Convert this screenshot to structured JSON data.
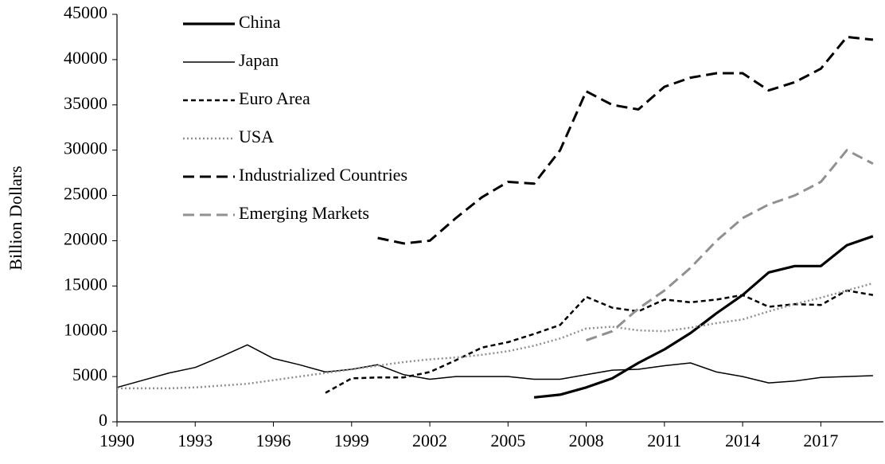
{
  "chart_data": {
    "type": "line",
    "y_label": "Billion Dollars",
    "x": [
      1990,
      1991,
      1992,
      1993,
      1994,
      1995,
      1996,
      1997,
      1998,
      1999,
      2000,
      2001,
      2002,
      2003,
      2004,
      2005,
      2006,
      2007,
      2008,
      2009,
      2010,
      2011,
      2012,
      2013,
      2014,
      2015,
      2016,
      2017,
      2018,
      2019
    ],
    "xlim": [
      1990,
      2019.4
    ],
    "xticks": [
      1990,
      1993,
      1996,
      1999,
      2002,
      2005,
      2008,
      2011,
      2014,
      2017
    ],
    "ylim": [
      0,
      45000
    ],
    "yticks": [
      0,
      5000,
      10000,
      15000,
      20000,
      25000,
      30000,
      35000,
      40000,
      45000
    ],
    "legend": "upper-left",
    "series": [
      {
        "name": "China",
        "color": "#000000",
        "line_style": "thick",
        "values": [
          null,
          null,
          null,
          null,
          null,
          null,
          null,
          null,
          null,
          null,
          null,
          null,
          null,
          null,
          null,
          null,
          2700,
          3000,
          3800,
          4800,
          6500,
          8000,
          9800,
          12000,
          14000,
          16500,
          17200,
          17200,
          19500,
          20500
        ]
      },
      {
        "name": "Japan",
        "color": "#000000",
        "line_style": "solid",
        "values": [
          3800,
          4600,
          5400,
          6000,
          7200,
          8500,
          7000,
          6300,
          5500,
          5800,
          6300,
          5200,
          4700,
          5000,
          5000,
          5000,
          4700,
          4700,
          5200,
          5700,
          5800,
          6200,
          6500,
          5500,
          5000,
          4300,
          4500,
          4900,
          5000,
          5100
        ]
      },
      {
        "name": "Euro Area",
        "color": "#000000",
        "line_style": "dash",
        "values": [
          null,
          null,
          null,
          null,
          null,
          null,
          null,
          null,
          3200,
          4800,
          4900,
          4900,
          5500,
          6800,
          8200,
          8800,
          9700,
          10700,
          13800,
          12600,
          12200,
          13500,
          13200,
          13500,
          14000,
          12700,
          13000,
          12900,
          14500,
          14000
        ]
      },
      {
        "name": "USA",
        "color": "#909090",
        "line_style": "dot",
        "values": [
          3700,
          3700,
          3700,
          3800,
          4000,
          4200,
          4600,
          5000,
          5400,
          5800,
          6200,
          6600,
          6900,
          7100,
          7400,
          7800,
          8400,
          9200,
          10300,
          10500,
          10100,
          10000,
          10400,
          10900,
          11300,
          12200,
          13000,
          13700,
          14500,
          15300
        ]
      },
      {
        "name": "Industrialized Countries",
        "color": "#000000",
        "line_style": "long-dash",
        "values": [
          null,
          null,
          null,
          null,
          null,
          null,
          null,
          null,
          null,
          null,
          20300,
          19700,
          20000,
          22500,
          24800,
          26500,
          26300,
          30000,
          36500,
          35000,
          34500,
          37000,
          38000,
          38500,
          38500,
          36600,
          37500,
          39000,
          42500,
          42200
        ]
      },
      {
        "name": "Emerging Markets",
        "color": "#909090",
        "line_style": "long-dash",
        "values": [
          null,
          null,
          null,
          null,
          null,
          null,
          null,
          null,
          null,
          null,
          null,
          null,
          null,
          null,
          null,
          null,
          null,
          null,
          9000,
          10000,
          12500,
          14500,
          17000,
          20000,
          22500,
          24000,
          25000,
          26500,
          30000,
          28500
        ]
      }
    ]
  }
}
